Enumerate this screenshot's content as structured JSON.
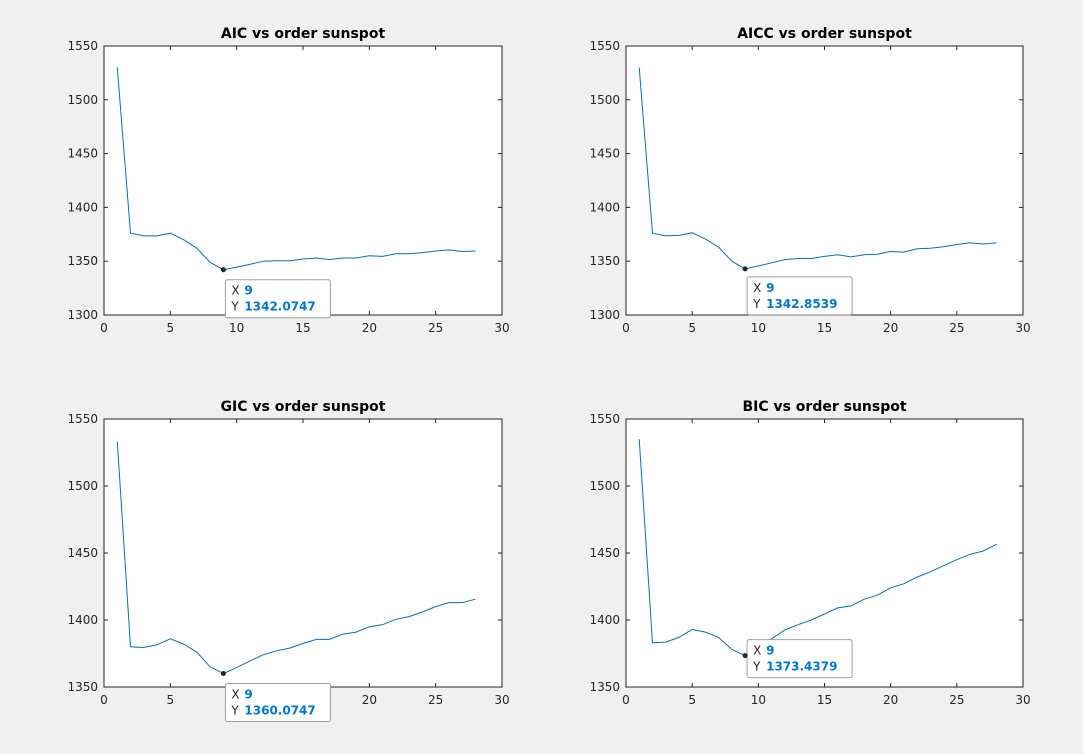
{
  "chart_data": [
    {
      "type": "line",
      "title": "AIC vs order sunspot",
      "xlim": [
        0,
        30
      ],
      "ylim": [
        1300,
        1550
      ],
      "xticks": [
        0,
        5,
        10,
        15,
        20,
        25,
        30
      ],
      "yticks": [
        1300,
        1350,
        1400,
        1450,
        1500,
        1550
      ],
      "series": [
        {
          "x": [
            1,
            2,
            3,
            4,
            5,
            6,
            7,
            8,
            9,
            10,
            11,
            12,
            13,
            14,
            15,
            16,
            17,
            18,
            19,
            20,
            21,
            22,
            23,
            24,
            25,
            26,
            27,
            28
          ],
          "values": [
            1530,
            1376,
            1373.5,
            1373.5,
            1376,
            1370,
            1362,
            1349,
            1342.0747,
            1344.5,
            1347,
            1350,
            1350.5,
            1350.5,
            1352,
            1353,
            1351.5,
            1353,
            1353,
            1355,
            1354.5,
            1357,
            1357,
            1358,
            1359.5,
            1360.5,
            1359,
            1359.5
          ]
        }
      ],
      "datatip": {
        "x_key": "X",
        "x_value": "9",
        "y_key": "Y",
        "y_value": "1342.0747",
        "x": 9,
        "y": 1342.0747
      }
    },
    {
      "type": "line",
      "title": "AICC vs order sunspot",
      "xlim": [
        0,
        30
      ],
      "ylim": [
        1300,
        1550
      ],
      "xticks": [
        0,
        5,
        10,
        15,
        20,
        25,
        30
      ],
      "yticks": [
        1300,
        1350,
        1400,
        1450,
        1500,
        1550
      ],
      "series": [
        {
          "x": [
            1,
            2,
            3,
            4,
            5,
            6,
            7,
            8,
            9,
            10,
            11,
            12,
            13,
            14,
            15,
            16,
            17,
            18,
            19,
            20,
            21,
            22,
            23,
            24,
            25,
            26,
            27,
            28
          ],
          "values": [
            1530,
            1376,
            1373.5,
            1374,
            1376.5,
            1370.5,
            1363,
            1350,
            1342.8539,
            1345.5,
            1348.5,
            1351.5,
            1352.5,
            1352.5,
            1354.5,
            1356,
            1354,
            1356,
            1356.5,
            1359,
            1358.5,
            1361.5,
            1362,
            1363.5,
            1365.5,
            1367,
            1366,
            1367
          ]
        }
      ],
      "datatip": {
        "x_key": "X",
        "x_value": "9",
        "y_key": "Y",
        "y_value": "1342.8539",
        "x": 9,
        "y": 1342.8539
      }
    },
    {
      "type": "line",
      "title": "GIC vs order sunspot",
      "xlim": [
        0,
        30
      ],
      "ylim": [
        1350,
        1550
      ],
      "xticks": [
        0,
        5,
        10,
        15,
        20,
        25,
        30
      ],
      "yticks": [
        1350,
        1400,
        1450,
        1500,
        1550
      ],
      "series": [
        {
          "x": [
            1,
            2,
            3,
            4,
            5,
            6,
            7,
            8,
            9,
            10,
            11,
            12,
            13,
            14,
            15,
            16,
            17,
            18,
            19,
            20,
            21,
            22,
            23,
            24,
            25,
            26,
            27,
            28
          ],
          "values": [
            1533,
            1380,
            1379.5,
            1381.5,
            1386,
            1382,
            1376,
            1365,
            1360.0747,
            1364.5,
            1369.5,
            1374,
            1377,
            1379,
            1382.5,
            1385.5,
            1385.5,
            1389.5,
            1391,
            1395,
            1396.5,
            1400.5,
            1402.5,
            1406,
            1410,
            1413,
            1413,
            1415.5
          ]
        }
      ],
      "datatip": {
        "x_key": "X",
        "x_value": "9",
        "y_key": "Y",
        "y_value": "1360.0747",
        "x": 9,
        "y": 1360.0747
      }
    },
    {
      "type": "line",
      "title": "BIC vs order sunspot",
      "xlim": [
        0,
        30
      ],
      "ylim": [
        1350,
        1550
      ],
      "xticks": [
        0,
        5,
        10,
        15,
        20,
        25,
        30
      ],
      "yticks": [
        1350,
        1400,
        1450,
        1500,
        1550
      ],
      "series": [
        {
          "x": [
            1,
            2,
            3,
            4,
            5,
            6,
            7,
            8,
            9,
            10,
            11,
            12,
            13,
            14,
            15,
            16,
            17,
            18,
            19,
            20,
            21,
            22,
            23,
            24,
            25,
            26,
            27,
            28
          ],
          "values": [
            1535,
            1383,
            1383.5,
            1387,
            1393,
            1391,
            1387,
            1378,
            1373.4379,
            1379.5,
            1386,
            1392.5,
            1396.5,
            1400,
            1404.5,
            1409,
            1410.5,
            1415.5,
            1418.5,
            1424,
            1427,
            1432,
            1436,
            1440.5,
            1445,
            1449,
            1451.5,
            1456.5
          ]
        }
      ],
      "datatip": {
        "x_key": "X",
        "x_value": "9",
        "y_key": "Y",
        "y_value": "1373.4379",
        "x": 9,
        "y": 1373.4379
      }
    }
  ],
  "colors": {
    "figure_background": "#f0f0f0",
    "axes_background": "#ffffff",
    "line": "#0072bd",
    "datatip_value": "#0078d7",
    "datatip_marker": "#262626"
  }
}
